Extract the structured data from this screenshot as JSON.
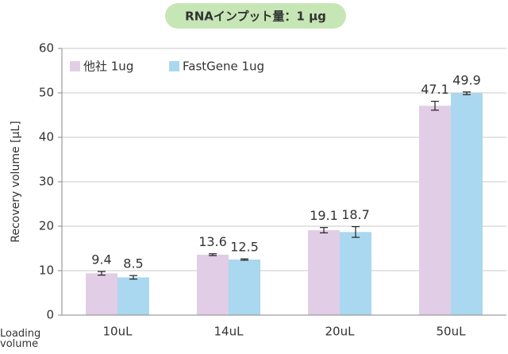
{
  "chart_data": {
    "type": "bar",
    "title": "RNAインプット量：1 μg",
    "y_label": "Recovery volume [μL]",
    "x_label": "Loading volume",
    "categories": [
      "10uL",
      "14uL",
      "20uL",
      "50uL"
    ],
    "series": [
      {
        "name": "他社 1ug",
        "color": "#e2cde6",
        "values": [
          9.4,
          13.6,
          19.1,
          47.1
        ],
        "errors": [
          0.4,
          0.2,
          0.6,
          1.0
        ]
      },
      {
        "name": "FastGene 1ug",
        "color": "#aad8f0",
        "values": [
          8.5,
          12.5,
          18.7,
          49.9
        ],
        "errors": [
          0.4,
          0.15,
          1.2,
          0.3
        ]
      }
    ],
    "ylim": [
      0,
      60
    ],
    "yticks": [
      0,
      10,
      20,
      30,
      40,
      50,
      60
    ],
    "grid": true,
    "legend": "top-left"
  }
}
